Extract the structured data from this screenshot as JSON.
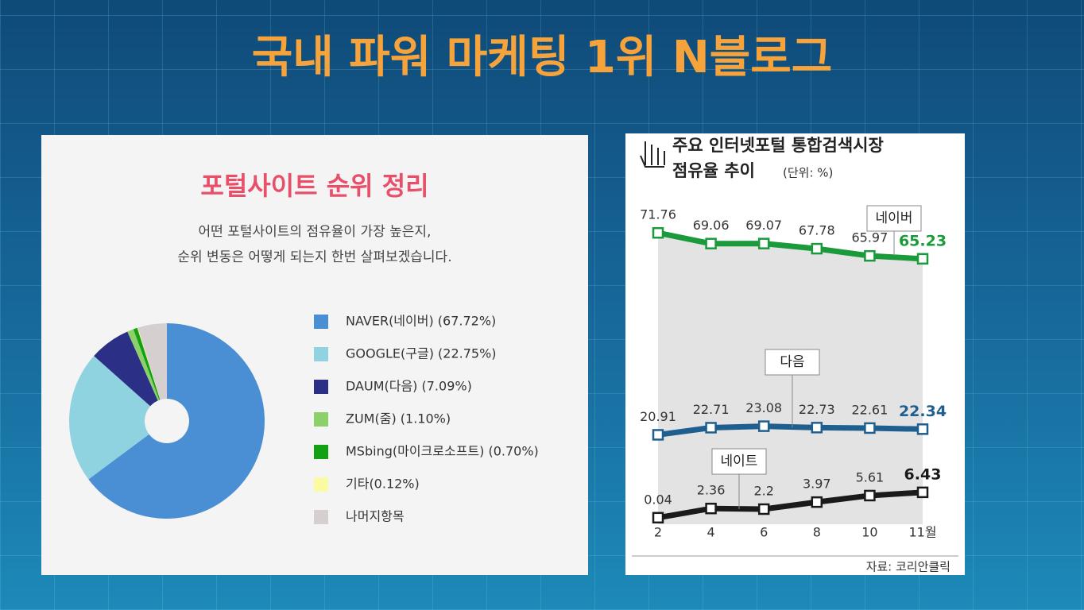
{
  "title": "국내 파워 마케팅 1위 N블로그",
  "chart_data": [
    {
      "type": "pie",
      "title": "포털사이트 순위 정리",
      "subtitle": [
        "어떤 포털사이트의 점유율이 가장 높은지,",
        "순위 변동은 어떻게 되는지 한번 살펴보겠습니다."
      ],
      "categories": [
        "NAVER(네이버) (67.72%)",
        "GOOGLE(구글) (22.75%)",
        "DAUM(다음) (7.09%)",
        "ZUM(줌) (1.10%)",
        "MSbing(마이크로소프트) (0.70%)",
        "기타(0.12%)",
        "나머지항목"
      ],
      "values": [
        67.72,
        22.75,
        7.09,
        1.1,
        0.7,
        0.12,
        5
      ],
      "colors": [
        "#4a8fd4",
        "#8fd3e0",
        "#2b2f86",
        "#8cd06a",
        "#13a013",
        "#fafaa0",
        "#d5d0cf"
      ]
    },
    {
      "type": "line",
      "title": [
        "주요 인터넷포털 통합검색시장",
        "점유율 추이"
      ],
      "unit": "(단위: %)",
      "categories": [
        "2",
        "4",
        "6",
        "8",
        "10",
        "11월"
      ],
      "series": [
        {
          "name": "네이버",
          "color": "#1a9a3a",
          "values": [
            71.76,
            69.06,
            69.07,
            67.78,
            65.97,
            65.23
          ]
        },
        {
          "name": "다음",
          "color": "#1f5f8f",
          "values": [
            20.91,
            22.71,
            23.08,
            22.73,
            22.61,
            22.34
          ]
        },
        {
          "name": "네이트",
          "color": "#1a1a1a",
          "values": [
            0.04,
            2.36,
            2.2,
            3.97,
            5.61,
            6.43
          ]
        }
      ],
      "ylim": [
        0,
        75
      ],
      "source": "자료: 코리안클릭"
    }
  ]
}
